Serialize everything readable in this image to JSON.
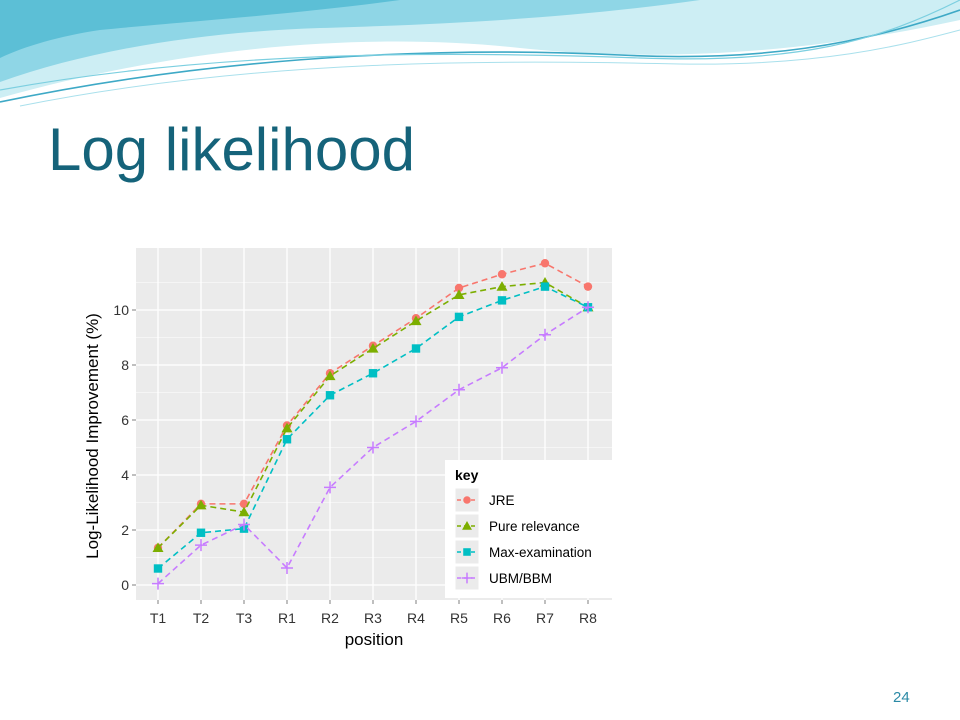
{
  "slide": {
    "title": "Log likelihood",
    "page_number": "24"
  },
  "colors": {
    "title": "#15637a",
    "wave_light": "#cdeef4",
    "wave_mid": "#8fd6e6",
    "wave_dark": "#3ea9c6",
    "panel_background": "#ebebeb",
    "grid": "#ffffff"
  },
  "chart_data": {
    "type": "line",
    "categories": [
      "T1",
      "T2",
      "T3",
      "R1",
      "R2",
      "R3",
      "R4",
      "R5",
      "R6",
      "R7",
      "R8"
    ],
    "xlabel": "position",
    "ylabel": "Log-Likelihood Improvement (%)",
    "ylim": [
      -0.8,
      12
    ],
    "y_ticks": [
      0,
      2,
      4,
      6,
      8,
      10
    ],
    "grid": true,
    "line_style": "dashed",
    "legend": {
      "title": "key",
      "placement": "bottom-right"
    },
    "series": [
      {
        "name": "JRE",
        "color": "#f8766d",
        "marker": "circle",
        "values": [
          1.35,
          2.95,
          2.95,
          5.8,
          7.7,
          8.7,
          9.7,
          10.8,
          11.3,
          11.7,
          10.85
        ]
      },
      {
        "name": "Pure relevance",
        "color": "#7cae00",
        "marker": "triangle",
        "values": [
          1.35,
          2.9,
          2.65,
          5.7,
          7.6,
          8.6,
          9.6,
          10.55,
          10.85,
          11.0,
          10.1
        ]
      },
      {
        "name": "Max-examination",
        "color": "#00bfc4",
        "marker": "square",
        "values": [
          0.6,
          1.9,
          2.05,
          5.3,
          6.9,
          7.7,
          8.6,
          9.75,
          10.35,
          10.85,
          10.1
        ]
      },
      {
        "name": "UBM/BBM",
        "color": "#c77cff",
        "marker": "plus",
        "values": [
          0.05,
          1.45,
          2.2,
          0.62,
          3.55,
          5.0,
          5.95,
          7.1,
          7.9,
          9.1,
          10.1
        ]
      }
    ]
  }
}
